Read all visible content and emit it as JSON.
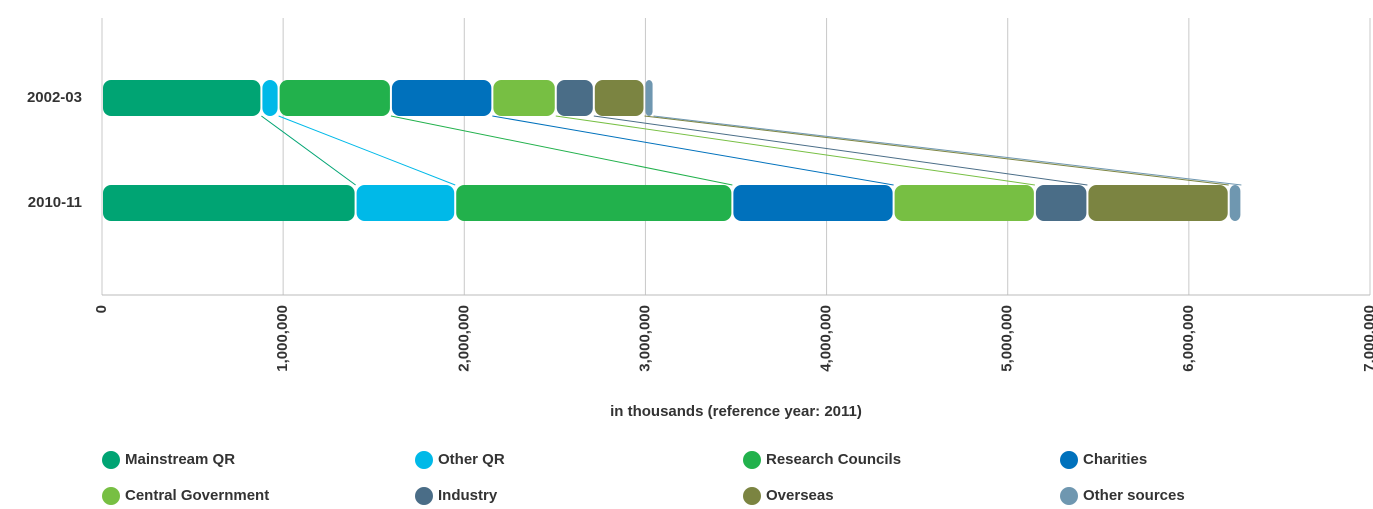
{
  "chart_data": {
    "type": "bar",
    "orientation": "horizontal",
    "stacked": true,
    "categories": [
      "2002-03",
      "2010-11"
    ],
    "series": [
      {
        "name": "Mainstream QR",
        "color": "#00a473",
        "values": [
          880000,
          1400000
        ]
      },
      {
        "name": "Other QR",
        "color": "#00b9e8",
        "values": [
          95000,
          550000
        ]
      },
      {
        "name": "Research Councils",
        "color": "#22b14c",
        "values": [
          620000,
          1530000
        ]
      },
      {
        "name": "Charities",
        "color": "#0071bc",
        "values": [
          560000,
          890000
        ]
      },
      {
        "name": "Central Government",
        "color": "#77bf43",
        "values": [
          350000,
          780000
        ]
      },
      {
        "name": "Industry",
        "color": "#4a6d87",
        "values": [
          210000,
          290000
        ]
      },
      {
        "name": "Overseas",
        "color": "#7b8441",
        "values": [
          280000,
          780000
        ]
      },
      {
        "name": "Other sources",
        "color": "#6f97b0",
        "values": [
          50000,
          70000
        ]
      }
    ],
    "xlabel": "in thousands (reference year: 2011)",
    "xlim": [
      0,
      7000000
    ],
    "xticks": [
      0,
      {
        "value": 1000000,
        "label": "1,000,000"
      },
      {
        "value": 2000000,
        "label": "2,000,000"
      },
      {
        "value": 3000000,
        "label": "3,000,000"
      },
      {
        "value": 4000000,
        "label": "4,000,000"
      },
      {
        "value": 5000000,
        "label": "5,000,000"
      },
      {
        "value": 6000000,
        "label": "6,000,000"
      },
      {
        "value": 7000000,
        "label": "7,000,000"
      }
    ],
    "grid": true,
    "legend": "bottom"
  }
}
